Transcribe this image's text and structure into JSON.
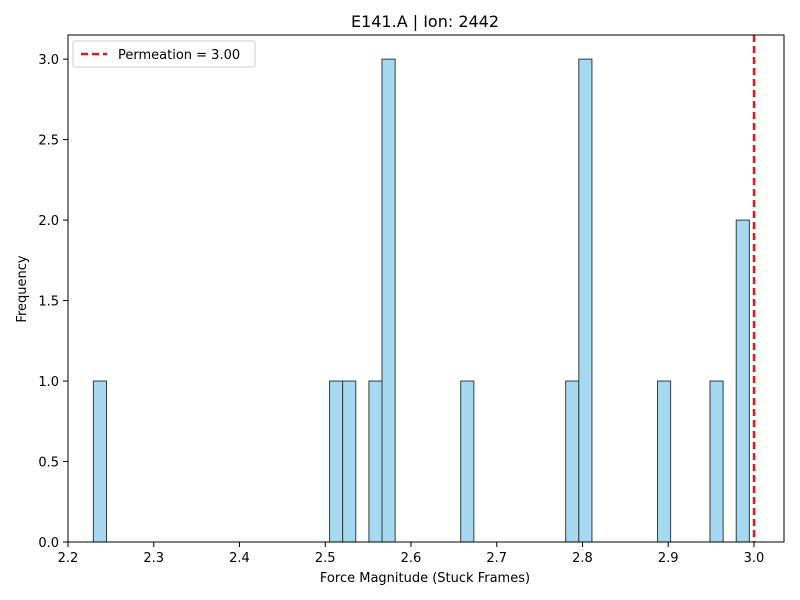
{
  "chart_data": {
    "type": "bar",
    "title": "E141.A | Ion: 2442",
    "xlabel": "Force Magnitude (Stuck Frames)",
    "ylabel": "Frequency",
    "xlim": [
      2.2,
      3.035
    ],
    "ylim": [
      0,
      3.15
    ],
    "xticks": [
      "2.2",
      "2.3",
      "2.4",
      "2.5",
      "2.6",
      "2.7",
      "2.8",
      "2.9",
      "3.0"
    ],
    "yticks": [
      "0.0",
      "0.5",
      "1.0",
      "1.5",
      "2.0",
      "2.5",
      "3.0"
    ],
    "bin_width": 0.0153,
    "bins": [
      {
        "left": 2.2296,
        "count": 1
      },
      {
        "left": 2.505,
        "count": 1
      },
      {
        "left": 2.5203,
        "count": 1
      },
      {
        "left": 2.5509,
        "count": 1
      },
      {
        "left": 2.5662,
        "count": 3
      },
      {
        "left": 2.658,
        "count": 1
      },
      {
        "left": 2.7804,
        "count": 1
      },
      {
        "left": 2.7957,
        "count": 3
      },
      {
        "left": 2.8875,
        "count": 1
      },
      {
        "left": 2.9487,
        "count": 1
      },
      {
        "left": 2.9793,
        "count": 2
      }
    ],
    "reference_line": {
      "x": 3.0,
      "label": "Permeation = 3.00",
      "color": "#e31a1c",
      "style": "dashed"
    },
    "bar_color": "#a6d9ef",
    "bar_edge_color": "#2f3e46",
    "legend_position": "top-left",
    "grid": false
  }
}
